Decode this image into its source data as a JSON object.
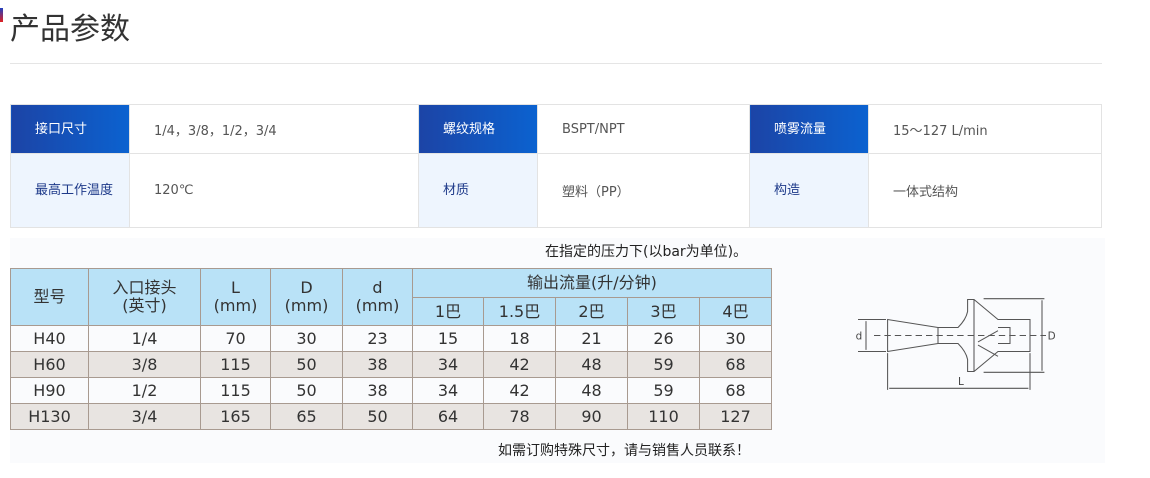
{
  "title": "产品参数",
  "specs": [
    [
      {
        "label": "接口尺寸",
        "value": "1/4，3/8，1/2，3/4"
      },
      {
        "label": "螺纹规格",
        "value": "BSPT/NPT"
      },
      {
        "label": "喷雾流量",
        "value": "15～127 L/min"
      }
    ],
    [
      {
        "label": "最高工作温度",
        "value": "120℃"
      },
      {
        "label": "材质",
        "value": "塑料（PP）"
      },
      {
        "label": "构造",
        "value": "一体式结构"
      }
    ]
  ],
  "note_top": "在指定的压力下(以bar为单位)。",
  "note_bottom": "如需订购特殊尺寸，请与销售人员联系！",
  "table": {
    "headers": {
      "model": "型号",
      "inlet": "入口接头",
      "inlet_unit": "(英寸)",
      "L": "L",
      "D": "D",
      "d": "d",
      "mm": "(mm)",
      "flow": "输出流量(升/分钟)"
    },
    "pressures": [
      "1巴",
      "1.5巴",
      "2巴",
      "3巴",
      "4巴"
    ],
    "rows": [
      [
        "H40",
        "1/4",
        "70",
        "30",
        "23",
        "15",
        "18",
        "21",
        "26",
        "30"
      ],
      [
        "H60",
        "3/8",
        "115",
        "50",
        "38",
        "34",
        "42",
        "48",
        "59",
        "68"
      ],
      [
        "H90",
        "1/2",
        "115",
        "50",
        "38",
        "34",
        "42",
        "48",
        "59",
        "68"
      ],
      [
        "H130",
        "3/4",
        "165",
        "65",
        "50",
        "64",
        "78",
        "90",
        "110",
        "127"
      ]
    ]
  },
  "drawing": {
    "d": "d",
    "D": "D",
    "L": "L"
  }
}
